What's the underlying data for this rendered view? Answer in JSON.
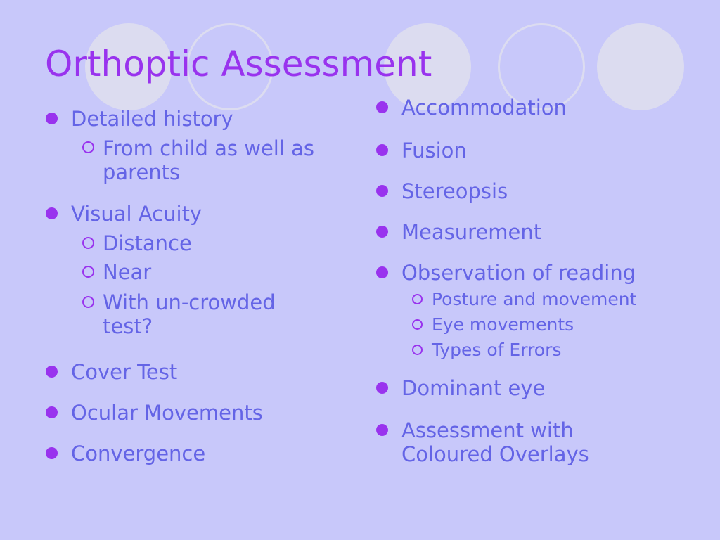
{
  "title": "Orthoptic Assessment",
  "left": [
    {
      "label": "Detailed history",
      "subs": [
        "From child as well as parents"
      ]
    },
    {
      "label": "Visual Acuity",
      "subs": [
        "Distance",
        "Near",
        "With un-crowded test?"
      ]
    },
    {
      "label": "Cover Test"
    },
    {
      "label": "Ocular Movements"
    },
    {
      "label": "Convergence"
    }
  ],
  "right": [
    {
      "label": "Accommodation"
    },
    {
      "label": "Fusion"
    },
    {
      "label": "Stereopsis"
    },
    {
      "label": "Measurement"
    },
    {
      "label": "Observation of reading",
      "subs": [
        "Posture and movement",
        "Eye movements",
        "Types of Errors"
      ]
    },
    {
      "label": "Dominant eye"
    },
    {
      "label": "Assessment with Coloured Overlays"
    }
  ],
  "colors": {
    "background": "#c8c8fa",
    "title": "#9933ee",
    "text": "#6464e6",
    "bullet": "#9933ee"
  }
}
